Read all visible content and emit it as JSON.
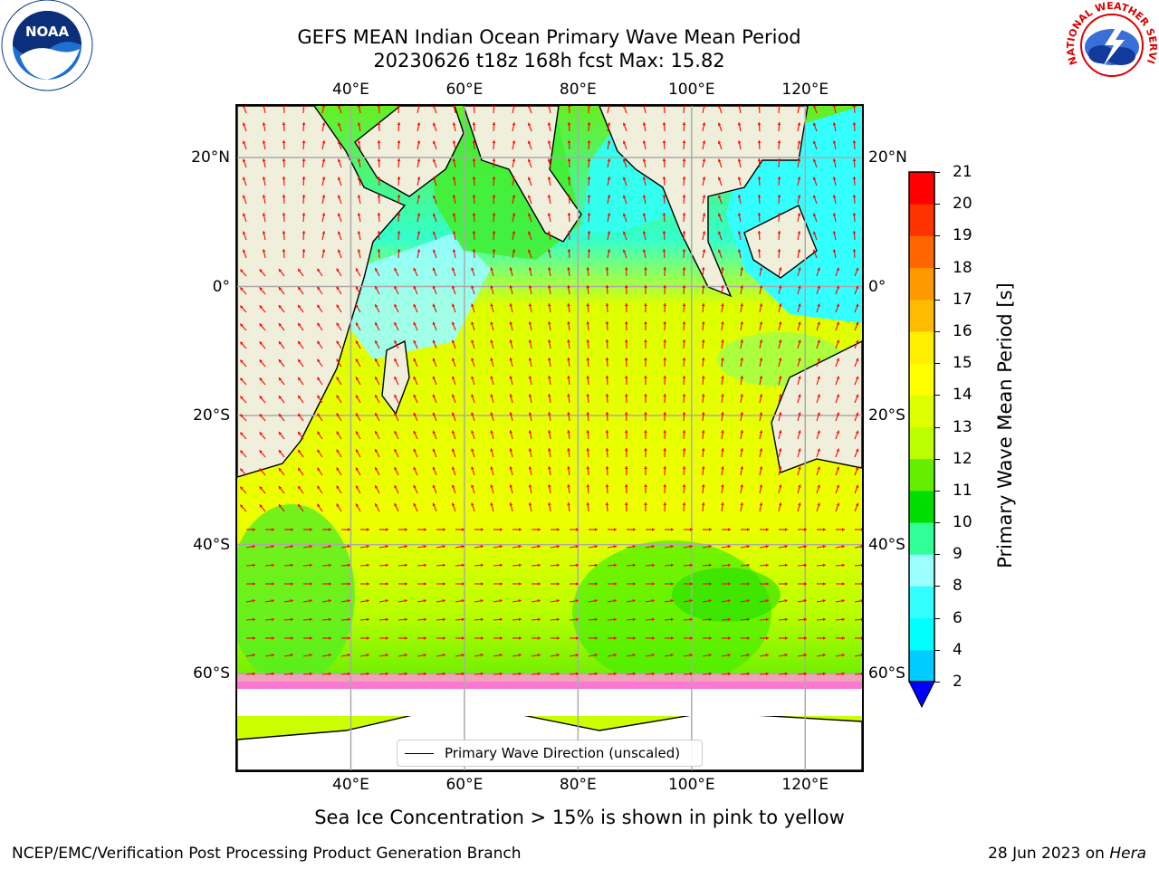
{
  "header": {
    "title_line1": "GEFS MEAN Indian Ocean Primary Wave Mean Period",
    "title_line2": "20230626 t18z 168h fcst   Max: 15.82"
  },
  "logos": {
    "left": {
      "name": "noaa-logo",
      "text": "NOAA",
      "ring_text": "NATIONAL OCEANIC AND ATMOSPHERIC ADMINISTRATION · U.S. DEPARTMENT OF COMMERCE"
    },
    "right": {
      "name": "nws-logo",
      "ring_text": "NATIONAL WEATHER SERVICE"
    }
  },
  "map": {
    "lon_range": [
      20,
      130
    ],
    "lat_range": [
      -75,
      28
    ],
    "lon_ticks": [
      {
        "value": 40,
        "label": "40°E"
      },
      {
        "value": 60,
        "label": "60°E"
      },
      {
        "value": 80,
        "label": "80°E"
      },
      {
        "value": 100,
        "label": "100°E"
      },
      {
        "value": 120,
        "label": "120°E"
      }
    ],
    "lat_ticks": [
      {
        "value": 20,
        "label": "20°N"
      },
      {
        "value": 0,
        "label": "0°"
      },
      {
        "value": -20,
        "label": "20°S"
      },
      {
        "value": -40,
        "label": "40°S"
      },
      {
        "value": -60,
        "label": "60°S"
      }
    ],
    "land_color": "#efefdc",
    "ice_land_color": "#ffffff",
    "gridlines": true,
    "arrow_color": "#ff0000",
    "legend_entry": "Primary Wave Direction (unscaled)"
  },
  "colorbar": {
    "label": "Primary Wave Mean Period [s]",
    "ticks": [
      "2",
      "4",
      "6",
      "8",
      "9",
      "10",
      "11",
      "12",
      "13",
      "14",
      "15",
      "16",
      "17",
      "18",
      "19",
      "20",
      "21"
    ],
    "colors": [
      "#0066ff",
      "#00ccff",
      "#00ffff",
      "#33ffff",
      "#99ffff",
      "#33ff99",
      "#00dd00",
      "#66ee00",
      "#bbff00",
      "#ddff00",
      "#ffff00",
      "#ffee00",
      "#ffbb00",
      "#ff9900",
      "#ff6600",
      "#ff3300",
      "#ff0000"
    ],
    "extend_color": "#0000ff"
  },
  "caption": "Sea Ice Concentration > 15% is shown in pink to yellow",
  "footer": {
    "left": "NCEP/EMC/Verification Post Processing Product Generation Branch",
    "right_prefix": "28 Jun 2023 on ",
    "right_host": "Hera"
  }
}
